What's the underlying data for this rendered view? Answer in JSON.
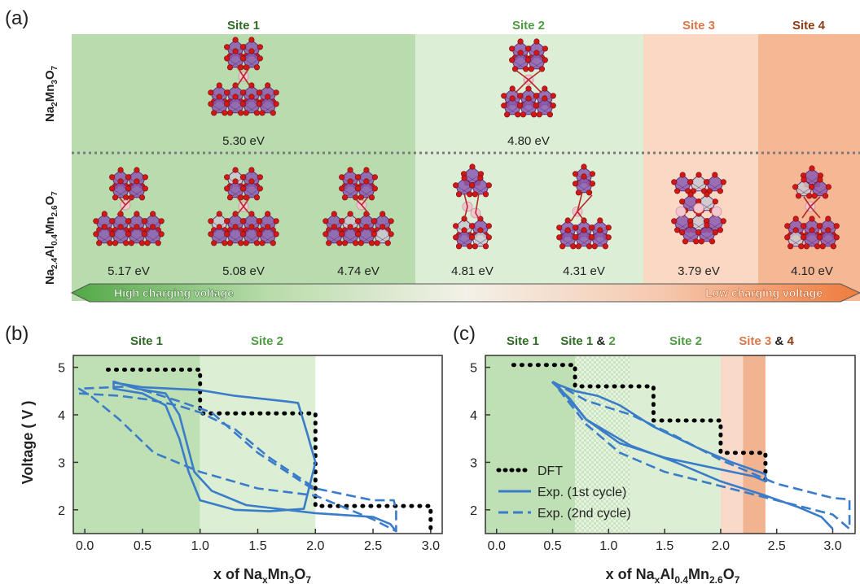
{
  "figure": {
    "panel_a": {
      "label": "(a)",
      "sites": [
        {
          "name": "Site 1",
          "color": "#2e6b24"
        },
        {
          "name": "Site 2",
          "color": "#4f9b43"
        },
        {
          "name": "Site 3",
          "color": "#d9774a"
        },
        {
          "name": "Site 4",
          "color": "#8a3e14"
        }
      ],
      "row_top_label": {
        "main": "Na",
        "s1": "2",
        "m2": "Mn",
        "s2": "3",
        "m3": "O",
        "s3": "7"
      },
      "row_bottom_label": {
        "main": "Na",
        "s1": "2.4",
        "m2": "Al",
        "s2": "0.4",
        "m3": "Mn",
        "s3": "2.6",
        "m4": "O",
        "s4": "7"
      },
      "top_energies": [
        "5.30 eV",
        "4.80 eV"
      ],
      "bottom_energies": [
        "5.17 eV",
        "5.08 eV",
        "4.74 eV",
        "4.81 eV",
        "4.31 eV",
        "3.79 eV",
        "4.10 eV"
      ],
      "arrow_left": "High charging voltage",
      "arrow_right": "Low charging voltage"
    },
    "panel_b": {
      "label": "(b)",
      "site_labels": [
        {
          "text": "Site 1",
          "color": "#2e6b24"
        },
        {
          "text": "Site 2",
          "color": "#4f9b43"
        }
      ],
      "xlabel": {
        "pre": "x of Na",
        "s1": "x",
        "m2": "Mn",
        "s2": "3",
        "m3": "O",
        "s3": "7"
      },
      "ylabel": "Voltage ( V )"
    },
    "panel_c": {
      "label": "(c)",
      "site_labels": [
        {
          "text": "Site 1",
          "color": "#2e6b24"
        },
        {
          "text": "Site 1",
          "color": "#2e6b24"
        },
        {
          "text": "&",
          "color": "#222222"
        },
        {
          "text": "2",
          "color": "#4f9b43"
        },
        {
          "text": "Site 2",
          "color": "#4f9b43"
        },
        {
          "text": "Site 3",
          "color": "#d9774a"
        },
        {
          "text": "&",
          "color": "#222222"
        },
        {
          "text": "4",
          "color": "#8a3e14"
        }
      ],
      "xlabel": {
        "pre": "x of Na",
        "s1": "x",
        "m2": "Al",
        "s2": "0.4",
        "m3": "Mn",
        "s3": "2.6",
        "m4": "O",
        "s4": "7"
      },
      "legend": [
        "DFT",
        "Exp. (1st cycle)",
        "Exp. (2nd cycle)"
      ]
    }
  },
  "chart_data": [
    {
      "type": "line",
      "panel": "b",
      "xlabel": "x of NaxMn3O7",
      "ylabel": "Voltage ( V )",
      "xlim": [
        -0.1,
        3.1
      ],
      "ylim": [
        1.5,
        5.25
      ],
      "xticks": [
        "0.0",
        "0.5",
        "1.0",
        "1.5",
        "2.0",
        "2.5",
        "3.0"
      ],
      "yticks": [
        "2",
        "3",
        "4",
        "5"
      ],
      "regions": [
        {
          "name": "Site 1",
          "x": [
            -0.1,
            1.0
          ],
          "color": "#bfe0b4"
        },
        {
          "name": "Site 2",
          "x": [
            1.0,
            2.0
          ],
          "color": "#dcefd5"
        }
      ],
      "series": [
        {
          "name": "DFT",
          "style": "dotted",
          "color": "#000000",
          "x": [
            0.2,
            1.0,
            1.0,
            2.0,
            2.0,
            3.0,
            3.0
          ],
          "y": [
            4.95,
            4.95,
            4.03,
            4.03,
            2.08,
            2.08,
            1.55
          ]
        },
        {
          "name": "Exp. (1st cycle)",
          "style": "solid",
          "color": "#3a7cc9",
          "x": [
            0.25,
            0.5,
            1.0,
            1.3,
            1.75,
            1.85,
            1.93,
            2.0,
            2.0,
            1.9,
            1.6,
            1.3,
            1.0,
            0.9,
            0.82,
            0.7,
            0.5,
            0.25,
            0.25,
            0.45,
            0.7,
            0.82,
            0.95,
            1.1,
            1.4,
            2.0,
            2.5,
            2.65,
            2.7
          ],
          "y": [
            4.68,
            4.58,
            4.52,
            4.4,
            4.28,
            4.25,
            3.6,
            3.0,
            3.0,
            2.02,
            1.97,
            2.0,
            2.2,
            2.8,
            3.5,
            4.2,
            4.45,
            4.55,
            4.7,
            4.55,
            4.45,
            4.0,
            2.8,
            2.4,
            2.1,
            1.93,
            1.85,
            1.7,
            1.55
          ]
        },
        {
          "name": "Exp. (2nd cycle)",
          "style": "dashed",
          "color": "#3a7cc9",
          "x": [
            -0.05,
            0.3,
            0.55,
            0.8,
            1.0,
            1.3,
            1.6,
            2.0,
            2.5,
            2.68,
            2.7,
            2.7,
            2.5,
            2.0,
            1.5,
            1.0,
            0.6,
            0.3,
            0.05,
            -0.05,
            0.4,
            0.8,
            1.1,
            1.5,
            2.0
          ],
          "y": [
            4.45,
            4.4,
            4.32,
            4.2,
            4.05,
            3.7,
            3.1,
            2.45,
            2.2,
            2.2,
            2.0,
            1.55,
            1.8,
            2.3,
            2.45,
            2.8,
            3.2,
            3.9,
            4.4,
            4.55,
            4.6,
            4.3,
            4.05,
            3.2,
            2.4
          ]
        }
      ]
    },
    {
      "type": "line",
      "panel": "c",
      "xlabel": "x of NaxAl0.4Mn2.6O7",
      "ylabel": "",
      "xlim": [
        -0.1,
        3.2
      ],
      "ylim": [
        1.5,
        5.25
      ],
      "xticks": [
        "0.0",
        "0.5",
        "1.0",
        "1.5",
        "2.0",
        "2.5",
        "3.0"
      ],
      "yticks": [
        "2",
        "3",
        "4",
        "5"
      ],
      "regions": [
        {
          "name": "Site 1",
          "x": [
            -0.1,
            0.7
          ],
          "color": "#bfe0b4"
        },
        {
          "name": "Site 1 & 2",
          "x": [
            0.7,
            1.2
          ],
          "color": "#d2e8c9"
        },
        {
          "name": "Site 2",
          "x": [
            1.2,
            2.0
          ],
          "color": "#dcefd5"
        },
        {
          "name": "Site 3",
          "x": [
            2.0,
            2.2
          ],
          "color": "#f9dac8"
        },
        {
          "name": "Site 4",
          "x": [
            2.2,
            2.4
          ],
          "color": "#f2b391"
        }
      ],
      "series": [
        {
          "name": "DFT",
          "style": "dotted",
          "color": "#000000",
          "x": [
            0.15,
            0.7,
            0.7,
            1.4,
            1.4,
            2.0,
            2.0,
            2.4,
            2.4
          ],
          "y": [
            5.05,
            5.05,
            4.6,
            4.6,
            3.88,
            3.88,
            3.2,
            3.2,
            2.55
          ]
        },
        {
          "name": "Exp. (1st cycle)",
          "style": "solid",
          "color": "#3a7cc9",
          "x": [
            0.5,
            0.7,
            0.9,
            1.1,
            1.4,
            1.8,
            2.1,
            2.4,
            2.4,
            2.3,
            2.0,
            1.5,
            1.1,
            0.8,
            0.65,
            0.5,
            0.55,
            0.8,
            1.2,
            1.6,
            2.0,
            2.4,
            2.7,
            2.9,
            3.0
          ],
          "y": [
            4.68,
            4.5,
            4.4,
            4.2,
            3.75,
            3.3,
            3.0,
            2.75,
            2.6,
            2.7,
            2.85,
            3.1,
            3.4,
            3.9,
            4.35,
            4.68,
            4.6,
            3.9,
            3.35,
            3.0,
            2.6,
            2.3,
            2.05,
            1.85,
            1.6
          ]
        },
        {
          "name": "Exp. (2nd cycle)",
          "style": "dashed",
          "color": "#3a7cc9",
          "x": [
            0.5,
            0.8,
            1.2,
            1.6,
            2.0,
            2.5,
            3.0,
            3.15,
            3.15,
            3.0,
            2.5,
            2.0,
            1.5,
            1.1,
            0.8,
            0.6,
            0.5
          ],
          "y": [
            4.7,
            4.3,
            4.0,
            3.55,
            3.05,
            2.55,
            2.25,
            2.22,
            1.6,
            1.9,
            2.2,
            2.5,
            2.8,
            3.2,
            3.8,
            4.4,
            4.7
          ]
        }
      ]
    }
  ],
  "colors": {
    "site1_bg": "#b9dcae",
    "site2_bg": "#dcefd6",
    "site3_bg": "#fbd8c4",
    "site4_bg": "#f5b794",
    "octa_fill": "#8a5ab0",
    "octa_edge": "#5b2f7c",
    "oxygen": "#d01818",
    "sodium": "#f3c7d0",
    "aluminium": "#c9c9cf",
    "line": "#3a7cc9"
  }
}
